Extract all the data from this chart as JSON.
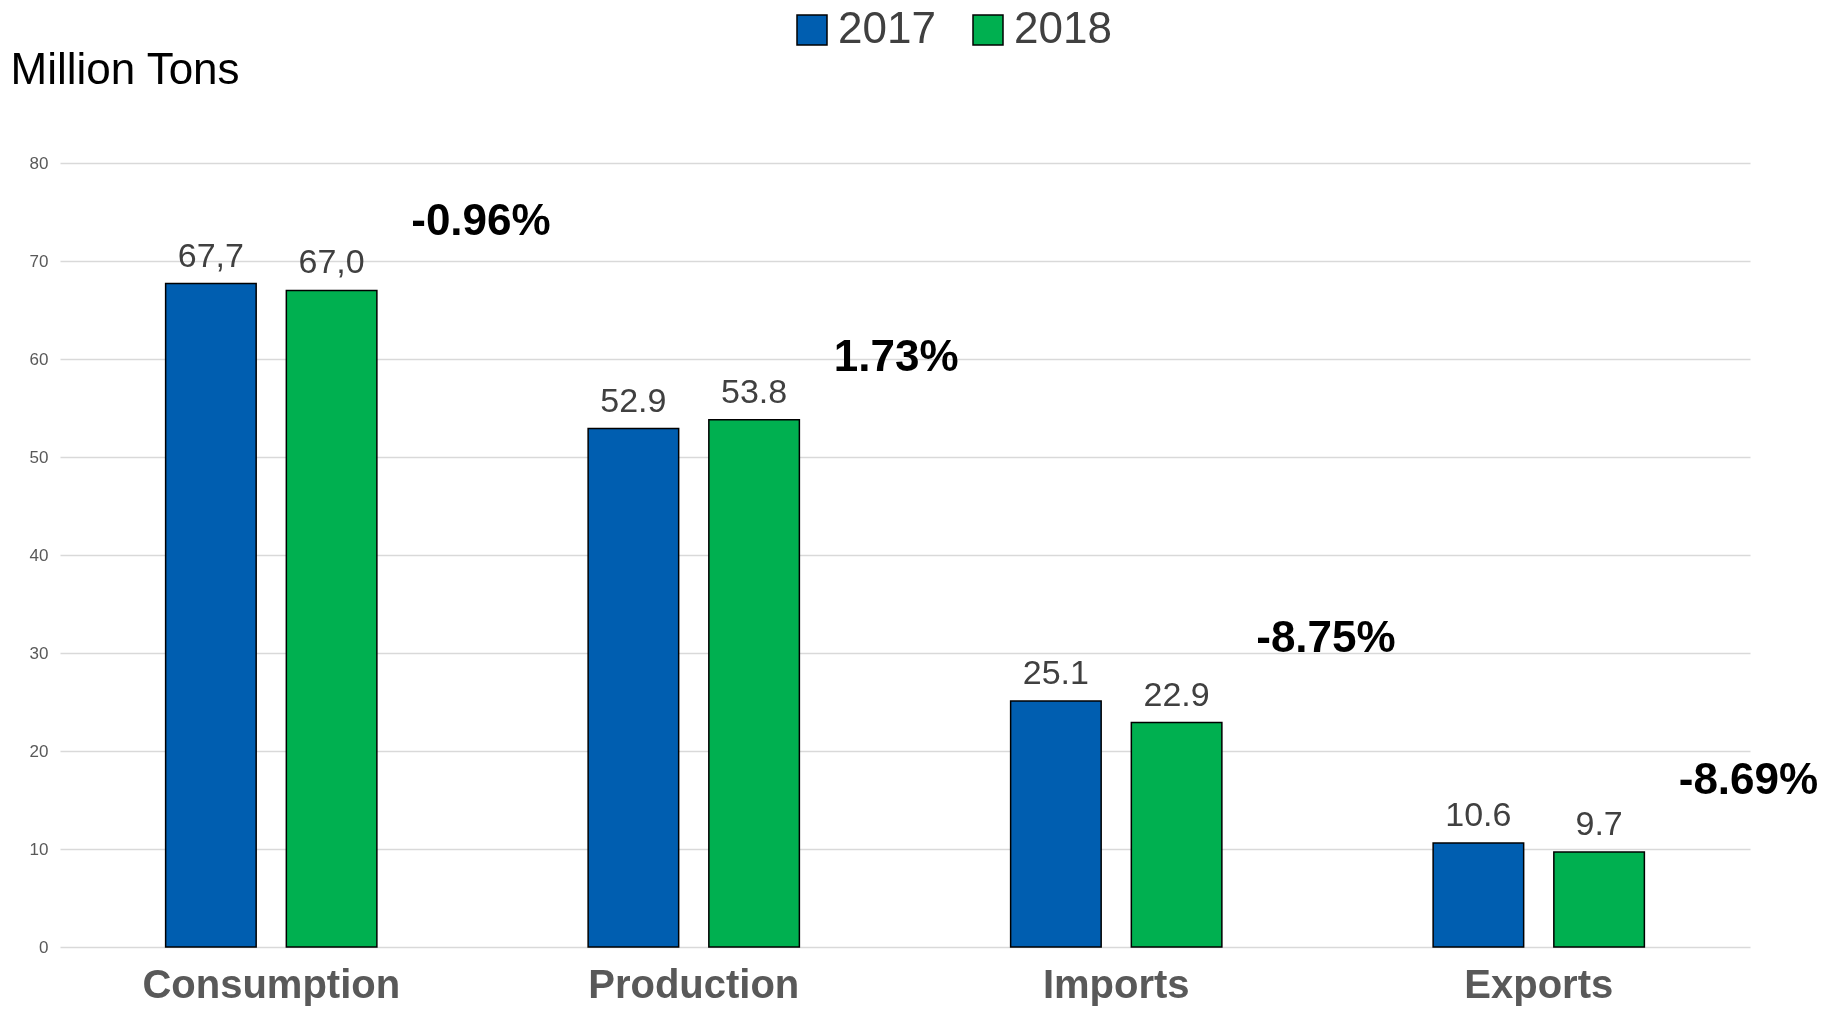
{
  "chart_data": {
    "type": "bar",
    "ylabel": "Million Tons",
    "categories": [
      "Consumption",
      "Production",
      "Imports",
      "Exports"
    ],
    "series": [
      {
        "name": "2017",
        "color": "#005eb0",
        "values": [
          67.7,
          52.9,
          25.1,
          10.6
        ],
        "value_labels": [
          "67,7",
          "52.9",
          "25.1",
          "10.6"
        ]
      },
      {
        "name": "2018",
        "color": "#00b050",
        "values": [
          67.0,
          53.8,
          22.9,
          9.7
        ],
        "value_labels": [
          "67,0",
          "53.8",
          "22.9",
          "9.7"
        ]
      }
    ],
    "annotations": [
      "-0.96%",
      "1.73%",
      "-8.75%",
      "-8.69%"
    ],
    "ylim": [
      0,
      80
    ],
    "yticks": [
      0,
      10,
      20,
      30,
      40,
      50,
      60,
      70,
      80
    ],
    "grid": "y",
    "legend": "top"
  }
}
